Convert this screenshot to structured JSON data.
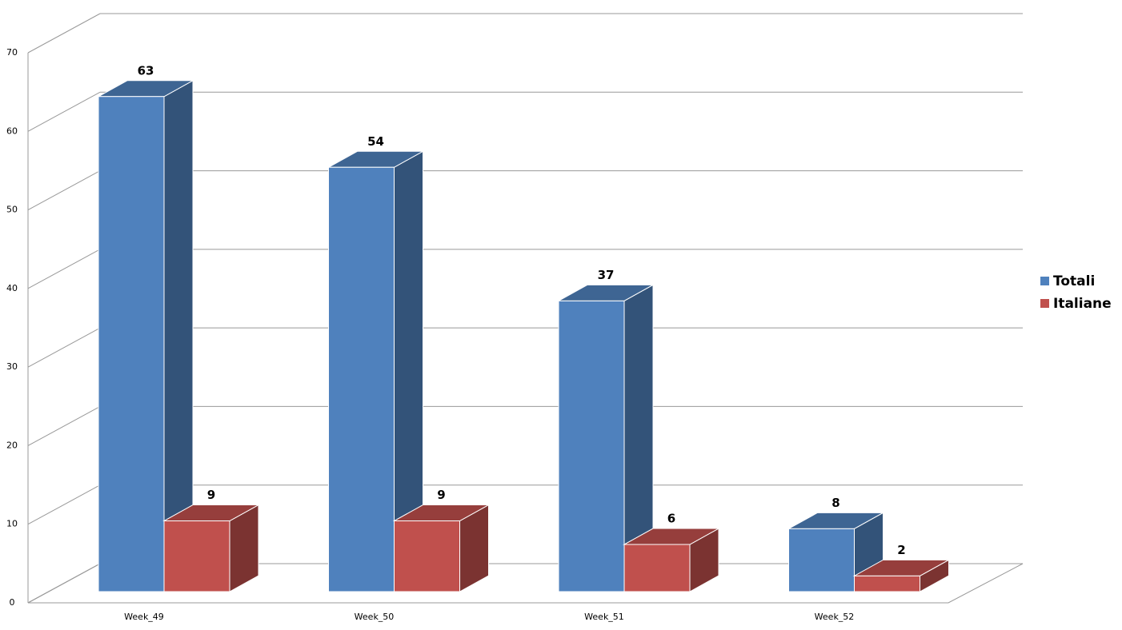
{
  "chart_data": {
    "type": "bar3d",
    "categories": [
      "Week_49",
      "Week_50",
      "Week_51",
      "Week_52"
    ],
    "series": [
      {
        "name": "Totali",
        "color": "#4f81bd",
        "values": [
          63,
          54,
          37,
          8
        ]
      },
      {
        "name": "Italiane",
        "color": "#c0504d",
        "values": [
          9,
          9,
          6,
          2
        ]
      }
    ],
    "ylim": [
      0,
      70
    ],
    "yticks": [
      0,
      10,
      20,
      30,
      40,
      50,
      60,
      70
    ],
    "grid": true,
    "legend": "right"
  }
}
